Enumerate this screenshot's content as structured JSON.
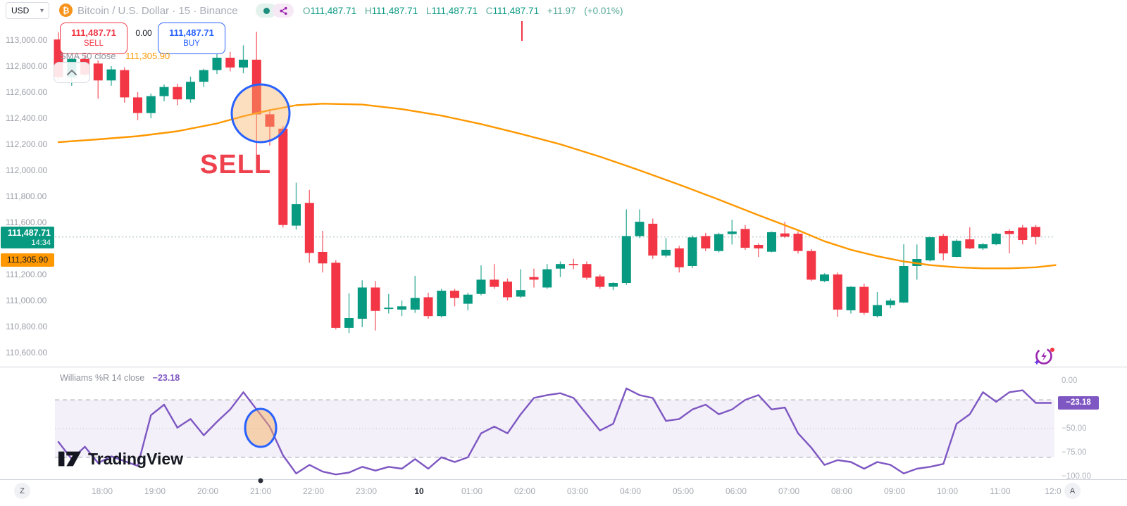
{
  "header": {
    "currency": "USD",
    "symbol_title": "Bitcoin / U.S. Dollar · 15 · Binance",
    "ohlc": {
      "o_label": "O",
      "o": "111,487.71",
      "h_label": "H",
      "h": "111,487.71",
      "l_label": "L",
      "l": "111,487.71",
      "c_label": "C",
      "c": "111,487.71",
      "change": "+11.97",
      "change_pct": "(+0.01%)"
    }
  },
  "trade_panel": {
    "sell_price": "111,487.71",
    "sell_label": "SELL",
    "spread": "0.00",
    "buy_price": "111,487.71",
    "buy_label": "BUY"
  },
  "sma_legend": {
    "name": "SMA 50 close",
    "value": "111,305.90"
  },
  "price_axis": {
    "labels": [
      "113,000.00",
      "112,800.00",
      "112,600.00",
      "112,400.00",
      "112,200.00",
      "112,000.00",
      "111,800.00",
      "111,600.00",
      "111,200.00",
      "111,000.00",
      "110,800.00",
      "110,600.00"
    ],
    "values": [
      113000,
      112800,
      112600,
      112400,
      112200,
      112000,
      111800,
      111600,
      111200,
      111000,
      110800,
      110600
    ],
    "last_price_badge": {
      "price": "111,487.71",
      "countdown": "14:34"
    },
    "sma_badge": {
      "value": "111,305.90"
    }
  },
  "time_axis": {
    "labels": [
      "18:00",
      "19:00",
      "20:00",
      "21:00",
      "22:00",
      "23:00",
      "10",
      "01:00",
      "02:00",
      "03:00",
      "04:00",
      "05:00",
      "06:00",
      "07:00",
      "08:00",
      "09:00",
      "10:00",
      "11:00",
      "12:0"
    ],
    "bold_index": 6,
    "timezone_button": "Z",
    "autoscale_button": "A"
  },
  "indicator": {
    "name": "Williams %R 14 close",
    "value": "−23.18",
    "badge": "−23.18",
    "axis_labels": [
      "0.00",
      "−50.00",
      "−75.00",
      "−100.00"
    ],
    "axis_values": [
      0,
      -50,
      -75,
      -100
    ],
    "bands": {
      "upper": -20,
      "middle": -50,
      "lower": -80
    }
  },
  "annotations": {
    "sell_text": "SELL"
  },
  "watermark": {
    "text": "TradingView"
  },
  "colors": {
    "up": "#089981",
    "down": "#f23645",
    "sma": "#ff9800",
    "williams": "#7e57c2",
    "annotation_blue": "#2962ff",
    "annotation_fill": "#f7b267",
    "sell_text": "#ef414d",
    "buy_button": "#2962ff",
    "badge_last": "#089981",
    "badge_sma": "#ff9800"
  },
  "chart_data": {
    "type": "candlestick",
    "symbol": "BTCUSD",
    "exchange": "Binance",
    "interval": "15m",
    "first_candle_time": "17:15",
    "last_price": 111487.71,
    "price_range_visible": [
      110500,
      113100
    ],
    "candles": [
      [
        113005,
        113060,
        112690,
        112715
      ],
      [
        112715,
        112860,
        112650,
        112855
      ],
      [
        112855,
        112880,
        112720,
        112735
      ],
      [
        112820,
        112845,
        112550,
        112690
      ],
      [
        112690,
        112800,
        112650,
        112775
      ],
      [
        112770,
        112790,
        112520,
        112560
      ],
      [
        112560,
        112600,
        112385,
        112440
      ],
      [
        112440,
        112590,
        112400,
        112570
      ],
      [
        112570,
        112660,
        112530,
        112640
      ],
      [
        112640,
        112665,
        112500,
        112545
      ],
      [
        112545,
        112720,
        112520,
        112680
      ],
      [
        112680,
        112780,
        112640,
        112770
      ],
      [
        112770,
        112900,
        112740,
        112865
      ],
      [
        112865,
        112910,
        112760,
        112790
      ],
      [
        112790,
        112960,
        112745,
        112850
      ],
      [
        112850,
        113065,
        111995,
        112430
      ],
      [
        112430,
        112470,
        112190,
        112335
      ],
      [
        112320,
        112340,
        111560,
        111580
      ],
      [
        111575,
        111905,
        111545,
        111740
      ],
      [
        111750,
        111850,
        111290,
        111365
      ],
      [
        111373,
        111535,
        111215,
        111285
      ],
      [
        111290,
        111310,
        110778,
        110790
      ],
      [
        110790,
        111055,
        110750,
        110865
      ],
      [
        110860,
        111155,
        110795,
        111100
      ],
      [
        111100,
        111150,
        110770,
        110920
      ],
      [
        110935,
        111050,
        110900,
        110945
      ],
      [
        110930,
        111000,
        110880,
        110955
      ],
      [
        110930,
        111190,
        110905,
        111020
      ],
      [
        111025,
        111060,
        110860,
        110880
      ],
      [
        110880,
        111090,
        110870,
        111075
      ],
      [
        111075,
        111090,
        110955,
        111020
      ],
      [
        110975,
        111060,
        110925,
        111045
      ],
      [
        111050,
        111270,
        111040,
        111160
      ],
      [
        111160,
        111280,
        111090,
        111105
      ],
      [
        111145,
        111170,
        111000,
        111025
      ],
      [
        111030,
        111240,
        111020,
        111080
      ],
      [
        111180,
        111245,
        111100,
        111160
      ],
      [
        111100,
        111280,
        111090,
        111240
      ],
      [
        111245,
        111300,
        111180,
        111280
      ],
      [
        111281,
        111320,
        111240,
        111275
      ],
      [
        111280,
        111300,
        111160,
        111175
      ],
      [
        111185,
        111200,
        111090,
        111105
      ],
      [
        111105,
        111140,
        111080,
        111135
      ],
      [
        111135,
        111700,
        111120,
        111495
      ],
      [
        111495,
        111700,
        111480,
        111605
      ],
      [
        111590,
        111630,
        111320,
        111345
      ],
      [
        111345,
        111480,
        111330,
        111390
      ],
      [
        111400,
        111420,
        111215,
        111255
      ],
      [
        111265,
        111500,
        111250,
        111485
      ],
      [
        111495,
        111520,
        111380,
        111400
      ],
      [
        111380,
        111520,
        111370,
        111510
      ],
      [
        111510,
        111620,
        111430,
        111530
      ],
      [
        111550,
        111580,
        111390,
        111405
      ],
      [
        111427,
        111440,
        111335,
        111400
      ],
      [
        111375,
        111530,
        111370,
        111525
      ],
      [
        111515,
        111605,
        111480,
        111490
      ],
      [
        111513,
        111530,
        111360,
        111380
      ],
      [
        111380,
        111395,
        111150,
        111160
      ],
      [
        111150,
        111210,
        111140,
        111200
      ],
      [
        111200,
        111215,
        110876,
        110930
      ],
      [
        110925,
        111110,
        110900,
        111105
      ],
      [
        111105,
        111130,
        110890,
        110905
      ],
      [
        110880,
        111065,
        110870,
        110965
      ],
      [
        110965,
        111015,
        110940,
        111000
      ],
      [
        110985,
        111432,
        110980,
        111265
      ],
      [
        111265,
        111430,
        111160,
        111319
      ],
      [
        111308,
        111490,
        111300,
        111486
      ],
      [
        111497,
        111512,
        111308,
        111362
      ],
      [
        111335,
        111470,
        111330,
        111459
      ],
      [
        111470,
        111562,
        111395,
        111400
      ],
      [
        111400,
        111442,
        111388,
        111432
      ],
      [
        111432,
        111520,
        111425,
        111513
      ],
      [
        111535,
        111548,
        111362,
        111510
      ],
      [
        111560,
        111580,
        111430,
        111465
      ],
      [
        111565,
        111580,
        111430,
        111488
      ]
    ],
    "sma50": {
      "name": "SMA 50 close",
      "current_value": 111305.9,
      "keypoints": [
        [
          0,
          112216
        ],
        [
          3,
          112238
        ],
        [
          6,
          112262
        ],
        [
          9,
          112300
        ],
        [
          12,
          112360
        ],
        [
          14,
          112415
        ],
        [
          16,
          112462
        ],
        [
          18,
          112500
        ],
        [
          20,
          112512
        ],
        [
          23,
          112505
        ],
        [
          26,
          112470
        ],
        [
          29,
          112420
        ],
        [
          32,
          112355
        ],
        [
          35,
          112280
        ],
        [
          38,
          112200
        ],
        [
          41,
          112105
        ],
        [
          44,
          112000
        ],
        [
          47,
          111890
        ],
        [
          50,
          111775
        ],
        [
          53,
          111655
        ],
        [
          56,
          111540
        ],
        [
          58,
          111455
        ],
        [
          60,
          111390
        ],
        [
          62,
          111340
        ],
        [
          64,
          111300
        ],
        [
          66,
          111272
        ],
        [
          68,
          111255
        ],
        [
          70,
          111247
        ],
        [
          72,
          111247
        ],
        [
          74,
          111255
        ],
        [
          75.5,
          111272
        ]
      ]
    },
    "williams_r": {
      "name": "Williams %R",
      "length": 14,
      "source": "close",
      "current_value": -23.18,
      "overbought": -20,
      "oversold": -80,
      "values": [
        -64,
        -82,
        -69,
        -86,
        -79,
        -84,
        -89,
        -36,
        -25,
        -49,
        -40,
        -57,
        -43,
        -30,
        -12,
        -30,
        -48,
        -78,
        -97,
        -88,
        -95,
        -98,
        -96,
        -90,
        -94,
        -90,
        -92,
        -82,
        -92,
        -80,
        -85,
        -80,
        -55,
        -48,
        -55,
        -35,
        -18,
        -15,
        -13,
        -18,
        -35,
        -52,
        -45,
        -8,
        -15,
        -18,
        -42,
        -40,
        -30,
        -25,
        -35,
        -30,
        -20,
        -15,
        -30,
        -28,
        -55,
        -70,
        -88,
        -83,
        -85,
        -92,
        -85,
        -88,
        -97,
        -92,
        -90,
        -87,
        -45,
        -35,
        -12,
        -22,
        -12,
        -10,
        -23.18
      ]
    },
    "drawn_annotations": {
      "price_circle": {
        "candle_index": 15,
        "note": "SMA cross sell signal circle"
      },
      "indicator_circle": {
        "candle_index": 15,
        "note": "Williams %R crossing -50"
      },
      "sell_text_label": "SELL"
    }
  }
}
